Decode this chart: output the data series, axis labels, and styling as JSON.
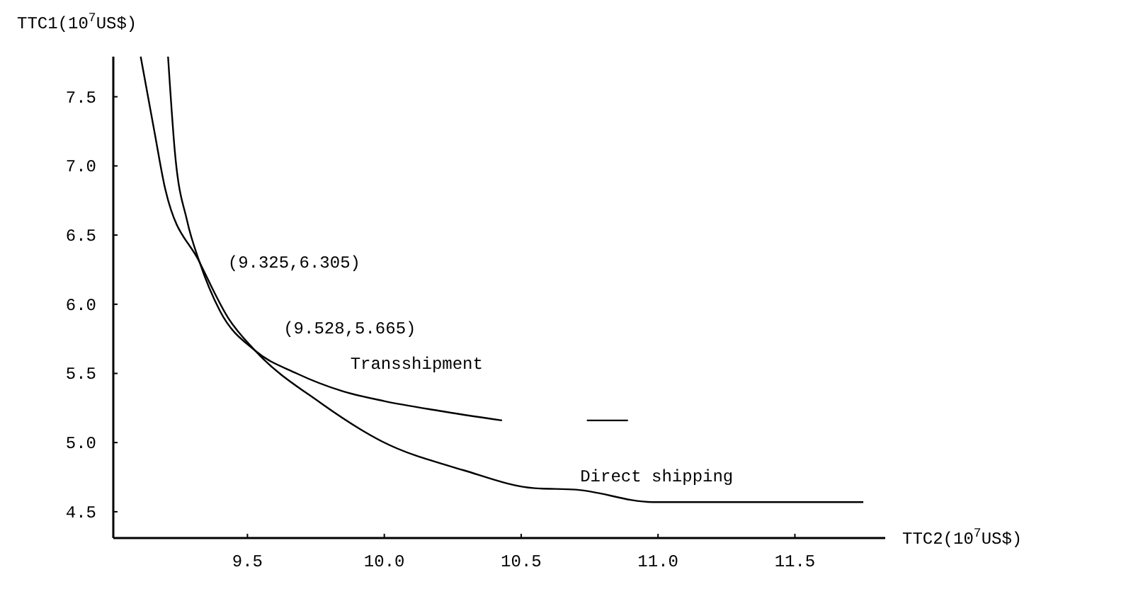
{
  "chart_data": {
    "type": "line",
    "xlabel": "TTC2(10$^{7}$US$)",
    "ylabel": "TTC1(10$^{7}$US$)",
    "xlim": [
      9.01,
      11.83
    ],
    "ylim": [
      4.31,
      7.79
    ],
    "xticks": [
      9.5,
      {
        "value": 10,
        "label": "10.0"
      },
      10.5,
      {
        "value": 11,
        "label": "11.0"
      },
      11.5
    ],
    "yticks": [
      4.5,
      {
        "value": 5,
        "label": "5.0"
      },
      5.5,
      {
        "value": 6,
        "label": "6.0"
      },
      6.5,
      {
        "value": 7,
        "label": "7.0"
      },
      7.5
    ],
    "grid": false,
    "marker": "none",
    "line_style": "solid",
    "series": [
      {
        "name": "Transshipment",
        "color": "#000000",
        "x": [
          9.21,
          9.235,
          9.28,
          9.325,
          9.4,
          9.528,
          9.68,
          9.85,
          10.0,
          10.2,
          10.43,
          10.6,
          10.74,
          10.89
        ],
        "values": [
          7.79,
          7.1,
          6.6,
          6.305,
          5.95,
          5.665,
          5.5,
          5.37,
          5.3,
          5.23,
          5.16,
          null,
          5.16,
          5.16
        ]
      },
      {
        "name": "Direct shipping",
        "color": "#000000",
        "x": [
          9.11,
          9.16,
          9.2,
          9.325,
          9.43,
          9.528,
          9.765,
          9.99,
          10.29,
          10.55,
          10.7,
          10.98,
          11.75
        ],
        "values": [
          7.79,
          7.25,
          6.83,
          6.305,
          5.9,
          5.665,
          5.29,
          5.01,
          4.8,
          4.67,
          4.66,
          4.57,
          4.57
        ]
      }
    ],
    "annotations": [
      {
        "text": "(9.325,6.305)",
        "x": 9.325,
        "y": 6.305
      },
      {
        "text": "(9.528,5.665)",
        "x": 9.528,
        "y": 5.665
      }
    ]
  }
}
